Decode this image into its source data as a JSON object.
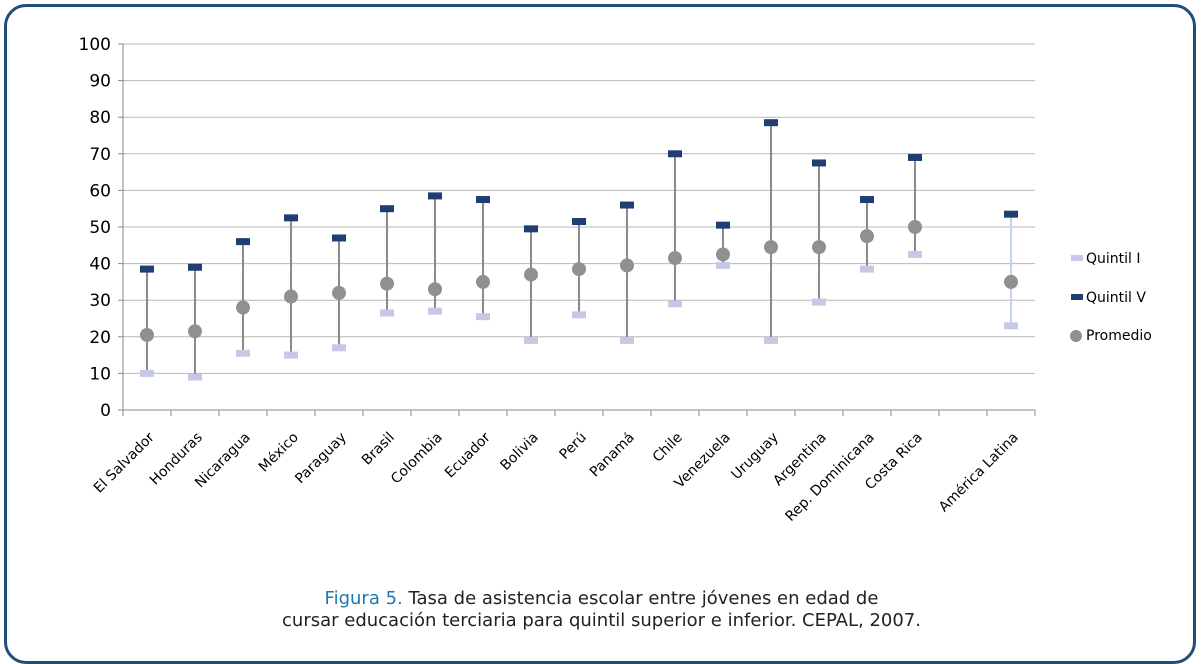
{
  "caption": {
    "label": "Figura 5.",
    "line1": "Tasa de asistencia escolar entre jóvenes en edad de",
    "line2": "cursar educación terciaria para quintil superior e inferior. CEPAL, 2007."
  },
  "chart_data": {
    "type": "scatter",
    "ylim": [
      0,
      100
    ],
    "yticks": [
      0,
      10,
      20,
      30,
      40,
      50,
      60,
      70,
      80,
      90,
      100
    ],
    "grid": true,
    "legend_position": "right",
    "categories": [
      "El Salvador",
      "Honduras",
      "Nicaragua",
      "México",
      "Paraguay",
      "Brasil",
      "Colombia",
      "Ecuador",
      "Bolivia",
      "Perú",
      "Panamá",
      "Chile",
      "Venezuela",
      "Uruguay",
      "Argentina",
      "Rep. Dominicana",
      "Costa Rica",
      "",
      "América Latina"
    ],
    "series": [
      {
        "name": "Quintil I",
        "color": "#c5c9e6",
        "values": [
          10,
          9,
          15.5,
          15,
          17,
          26.5,
          27,
          25.5,
          19,
          26,
          19,
          29,
          39.5,
          19,
          29.5,
          38.5,
          42.5,
          null,
          23
        ]
      },
      {
        "name": "Quintil V",
        "color": "#1f3f73",
        "values": [
          38.5,
          39,
          46,
          52.5,
          47,
          55,
          58.5,
          57.5,
          49.5,
          51.5,
          56,
          70,
          50.5,
          78.5,
          67.5,
          57.5,
          69,
          null,
          53.5
        ]
      },
      {
        "name": "Promedio",
        "color": "#909090",
        "values": [
          20.5,
          21.5,
          28,
          31,
          32,
          34.5,
          33,
          35,
          37,
          38.5,
          39.5,
          41.5,
          42.5,
          44.5,
          44.5,
          47.5,
          50,
          null,
          35
        ]
      }
    ]
  }
}
